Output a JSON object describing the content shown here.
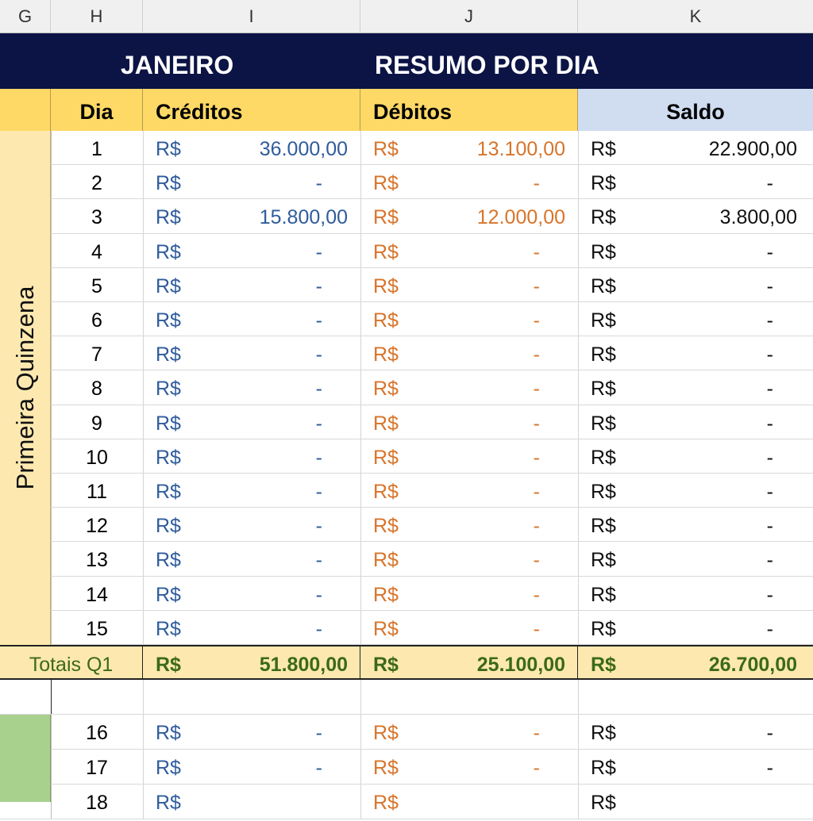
{
  "column_headers": [
    "G",
    "H",
    "I",
    "J",
    "K"
  ],
  "title": {
    "left": "JANEIRO",
    "right": "RESUMO POR DIA"
  },
  "header": {
    "dia": "Dia",
    "creditos": "Créditos",
    "debitos": "Débitos",
    "saldo": "Saldo"
  },
  "side_label_q1": "Primeira Quinzena",
  "currency": "R$",
  "rows_q1": [
    {
      "dia": "1",
      "credito": "36.000,00",
      "debito": "13.100,00",
      "saldo": "22.900,00"
    },
    {
      "dia": "2",
      "credito": "-",
      "debito": "-",
      "saldo": "-"
    },
    {
      "dia": "3",
      "credito": "15.800,00",
      "debito": "12.000,00",
      "saldo": "3.800,00"
    },
    {
      "dia": "4",
      "credito": "-",
      "debito": "-",
      "saldo": "-"
    },
    {
      "dia": "5",
      "credito": "-",
      "debito": "-",
      "saldo": "-"
    },
    {
      "dia": "6",
      "credito": "-",
      "debito": "-",
      "saldo": "-"
    },
    {
      "dia": "7",
      "credito": "-",
      "debito": "-",
      "saldo": "-"
    },
    {
      "dia": "8",
      "credito": "-",
      "debito": "-",
      "saldo": "-"
    },
    {
      "dia": "9",
      "credito": "-",
      "debito": "-",
      "saldo": "-"
    },
    {
      "dia": "10",
      "credito": "-",
      "debito": "-",
      "saldo": "-"
    },
    {
      "dia": "11",
      "credito": "-",
      "debito": "-",
      "saldo": "-"
    },
    {
      "dia": "12",
      "credito": "-",
      "debito": "-",
      "saldo": "-"
    },
    {
      "dia": "13",
      "credito": "-",
      "debito": "-",
      "saldo": "-"
    },
    {
      "dia": "14",
      "credito": "-",
      "debito": "-",
      "saldo": "-"
    },
    {
      "dia": "15",
      "credito": "-",
      "debito": "-",
      "saldo": "-"
    }
  ],
  "totals_q1": {
    "label": "Totais Q1",
    "creditos": "51.800,00",
    "debitos": "25.100,00",
    "saldo": "26.700,00"
  },
  "rows_q2": [
    {
      "dia": "16",
      "credito": "-",
      "debito": "-",
      "saldo": "-"
    },
    {
      "dia": "17",
      "credito": "-",
      "debito": "-",
      "saldo": "-"
    },
    {
      "dia": "18",
      "credito": "",
      "debito": "",
      "saldo": ""
    }
  ],
  "colors": {
    "title_bg": "#0c1445",
    "header_yellow": "#ffd966",
    "header_blue": "#d0dcf0",
    "q1_side": "#fde9b0",
    "q2_side": "#a9d18e",
    "credit_text": "#2f5c9c",
    "debit_text": "#d8742a",
    "totals_text": "#3c6a16"
  }
}
